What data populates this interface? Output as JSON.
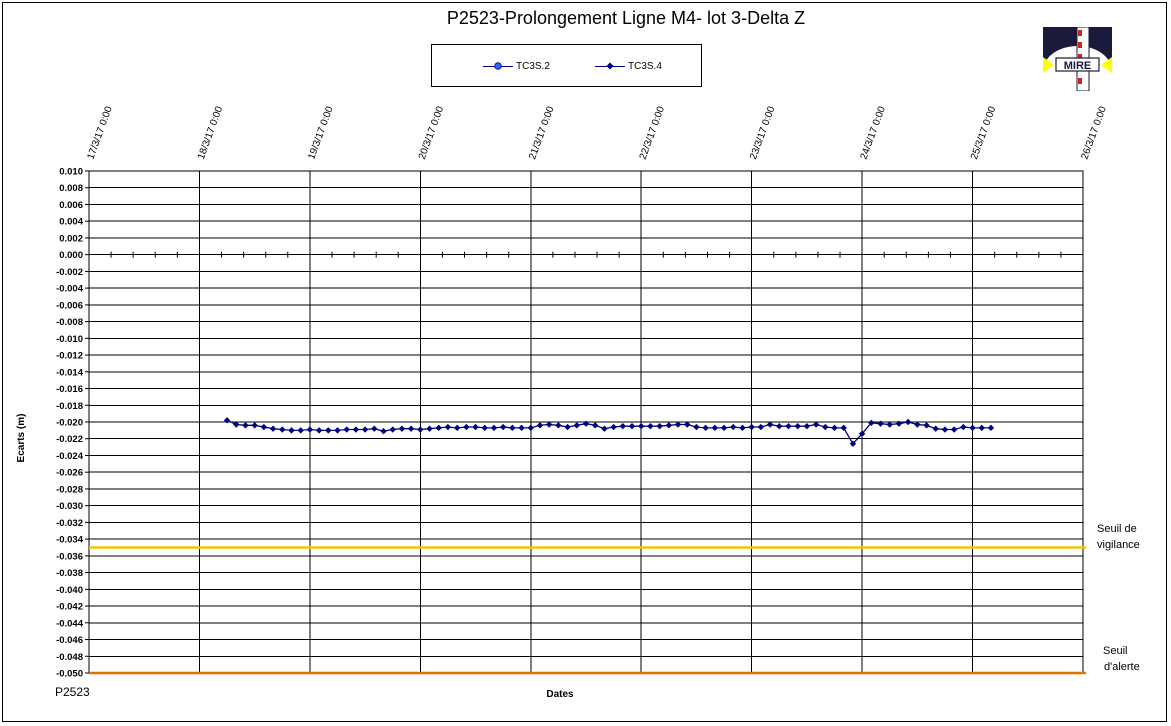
{
  "chart_data": {
    "type": "line",
    "title": "P2523-Prolongement  Ligne  M4- lot 3-Delta Z",
    "ylabel": "Ecarts (m)",
    "xlabel": "Dates",
    "ylim": [
      -0.05,
      0.01
    ],
    "y_step": 0.002,
    "yticks": [
      "0.010",
      "0.008",
      "0.006",
      "0.004",
      "0.002",
      "0.000",
      "-0.002",
      "-0.004",
      "-0.006",
      "-0.008",
      "-0.010",
      "-0.012",
      "-0.014",
      "-0.016",
      "-0.018",
      "-0.020",
      "-0.022",
      "-0.024",
      "-0.026",
      "-0.028",
      "-0.030",
      "-0.032",
      "-0.034",
      "-0.036",
      "-0.038",
      "-0.040",
      "-0.042",
      "-0.044",
      "-0.046",
      "-0.048",
      "-0.050"
    ],
    "xlim": [
      "2017-03-17",
      "2017-03-26"
    ],
    "xticks": [
      "17/3/17 0:00",
      "18/3/17 0:00",
      "19/3/17 0:00",
      "20/3/17 0:00",
      "21/3/17 0:00",
      "22/3/17 0:00",
      "23/3/17 0:00",
      "24/3/17 0:00",
      "25/3/17 0:00",
      "26/3/17 0:00"
    ],
    "grid": true,
    "legend_position": "top-center",
    "series": [
      {
        "name": "TC3S.2",
        "color": "#3366ff",
        "marker": "circle",
        "x": [],
        "y": []
      },
      {
        "name": "TC3S.4",
        "color": "#000080",
        "marker": "diamond",
        "x": [
          "2017-03-18 06:00",
          "2017-03-18 08:00",
          "2017-03-18 10:00",
          "2017-03-18 12:00",
          "2017-03-18 14:00",
          "2017-03-18 16:00",
          "2017-03-18 18:00",
          "2017-03-18 20:00",
          "2017-03-18 22:00",
          "2017-03-19 00:00",
          "2017-03-19 02:00",
          "2017-03-19 04:00",
          "2017-03-19 06:00",
          "2017-03-19 08:00",
          "2017-03-19 10:00",
          "2017-03-19 12:00",
          "2017-03-19 14:00",
          "2017-03-19 16:00",
          "2017-03-19 18:00",
          "2017-03-19 20:00",
          "2017-03-19 22:00",
          "2017-03-20 00:00",
          "2017-03-20 02:00",
          "2017-03-20 04:00",
          "2017-03-20 06:00",
          "2017-03-20 08:00",
          "2017-03-20 10:00",
          "2017-03-20 12:00",
          "2017-03-20 14:00",
          "2017-03-20 16:00",
          "2017-03-20 18:00",
          "2017-03-20 20:00",
          "2017-03-20 22:00",
          "2017-03-21 00:00",
          "2017-03-21 02:00",
          "2017-03-21 04:00",
          "2017-03-21 06:00",
          "2017-03-21 08:00",
          "2017-03-21 10:00",
          "2017-03-21 12:00",
          "2017-03-21 14:00",
          "2017-03-21 16:00",
          "2017-03-21 18:00",
          "2017-03-21 20:00",
          "2017-03-21 22:00",
          "2017-03-22 00:00",
          "2017-03-22 02:00",
          "2017-03-22 04:00",
          "2017-03-22 06:00",
          "2017-03-22 08:00",
          "2017-03-22 10:00",
          "2017-03-22 12:00",
          "2017-03-22 14:00",
          "2017-03-22 16:00",
          "2017-03-22 18:00",
          "2017-03-22 20:00",
          "2017-03-22 22:00",
          "2017-03-23 00:00",
          "2017-03-23 02:00",
          "2017-03-23 04:00",
          "2017-03-23 06:00",
          "2017-03-23 08:00",
          "2017-03-23 10:00",
          "2017-03-23 12:00",
          "2017-03-23 14:00",
          "2017-03-23 16:00",
          "2017-03-23 18:00",
          "2017-03-23 20:00",
          "2017-03-23 22:00",
          "2017-03-24 00:00",
          "2017-03-24 02:00",
          "2017-03-24 04:00",
          "2017-03-24 06:00",
          "2017-03-24 08:00",
          "2017-03-24 10:00",
          "2017-03-24 12:00",
          "2017-03-24 14:00",
          "2017-03-24 16:00",
          "2017-03-24 18:00",
          "2017-03-24 20:00",
          "2017-03-24 22:00",
          "2017-03-25 00:00",
          "2017-03-25 02:00",
          "2017-03-25 04:00"
        ],
        "y": [
          -0.0198,
          -0.0203,
          -0.0204,
          -0.0204,
          -0.0206,
          -0.0208,
          -0.0209,
          -0.021,
          -0.021,
          -0.0209,
          -0.021,
          -0.021,
          -0.021,
          -0.0209,
          -0.0209,
          -0.0209,
          -0.0208,
          -0.0211,
          -0.0209,
          -0.0208,
          -0.0208,
          -0.0209,
          -0.0208,
          -0.0207,
          -0.0206,
          -0.0207,
          -0.0206,
          -0.0206,
          -0.0207,
          -0.0207,
          -0.0206,
          -0.0207,
          -0.0207,
          -0.0207,
          -0.0204,
          -0.0203,
          -0.0204,
          -0.0206,
          -0.0204,
          -0.0202,
          -0.0204,
          -0.0208,
          -0.0206,
          -0.0205,
          -0.0205,
          -0.0205,
          -0.0205,
          -0.0205,
          -0.0204,
          -0.0203,
          -0.0203,
          -0.0206,
          -0.0207,
          -0.0207,
          -0.0207,
          -0.0206,
          -0.0207,
          -0.0206,
          -0.0206,
          -0.0203,
          -0.0205,
          -0.0205,
          -0.0205,
          -0.0205,
          -0.0203,
          -0.0206,
          -0.0207,
          -0.0207,
          -0.0226,
          -0.0214,
          -0.0201,
          -0.0202,
          -0.0203,
          -0.0202,
          -0.02,
          -0.0203,
          -0.0204,
          -0.0208,
          -0.0209,
          -0.0209,
          -0.0206,
          -0.0207,
          -0.0207,
          -0.0207
        ]
      }
    ],
    "thresholds": [
      {
        "value": -0.035,
        "color": "#f5c400",
        "label_line1": "Seuil de",
        "label_line2": "vigilance"
      },
      {
        "value": -0.05,
        "color": "#e07000",
        "label_line1": "Seuil",
        "label_line2": "d'alerte"
      }
    ]
  },
  "footer_label": "P2523",
  "logo": {
    "name": "MIRE",
    "colors": {
      "dark": "#1a1a3a",
      "red": "#cc2222",
      "yellow": "#ffff00"
    }
  }
}
